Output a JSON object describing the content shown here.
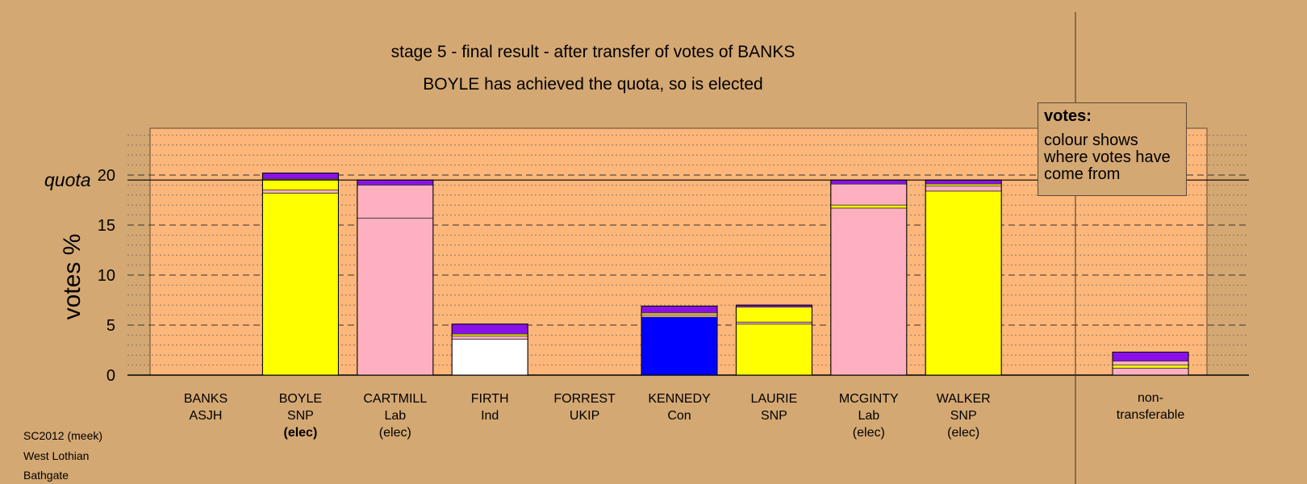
{
  "title_line1": "stage 5 - final result - after transfer of votes of BANKS",
  "title_line2": "BOYLE has achieved the quota, so is elected",
  "legend": {
    "title": "votes:",
    "text": "colour shows where votes have come from"
  },
  "footer": [
    "SC2012 (meek)",
    "West Lothian",
    "Bathgate"
  ],
  "colors": {
    "background": "#d4a873",
    "plot": "#fdb77a",
    "SNP": "#ffff00",
    "Lab": "#ffb0c0",
    "Ind": "#ffffff",
    "Con": "#0000ff",
    "other": "#8a10e8",
    "UKIP": "#8a10e8"
  },
  "chart_data": {
    "type": "bar",
    "stacked": true,
    "ylabel": "votes %",
    "quota_label": "quota",
    "quota": 19.5,
    "ylim": [
      0,
      24.5
    ],
    "yticks": [
      0,
      5,
      10,
      15,
      20
    ],
    "grid": "dashed major every 5, dotted minor every 1",
    "candidates": [
      {
        "name": "BANKS",
        "party": "ASJH",
        "status": "",
        "segments": []
      },
      {
        "name": "BOYLE",
        "party": "SNP",
        "status": "(elec)",
        "segments": [
          {
            "from": "SNP",
            "value": 18.2
          },
          {
            "from": "Lab",
            "value": 0.3
          },
          {
            "from": "SNP",
            "value": 1.1
          },
          {
            "from": "other",
            "value": 0.6
          }
        ]
      },
      {
        "name": "CARTMILL",
        "party": "Lab",
        "status": "(elec)",
        "segments": [
          {
            "from": "Lab",
            "value": 15.7
          },
          {
            "from": "Lab",
            "value": 3.3
          },
          {
            "from": "other",
            "value": 0.5
          }
        ]
      },
      {
        "name": "FIRTH",
        "party": "Ind",
        "status": "",
        "segments": [
          {
            "from": "Ind",
            "value": 3.6
          },
          {
            "from": "Lab",
            "value": 0.3
          },
          {
            "from": "SNP",
            "value": 0.2
          },
          {
            "from": "other",
            "value": 1.0
          }
        ]
      },
      {
        "name": "FORREST",
        "party": "UKIP",
        "status": "",
        "segments": []
      },
      {
        "name": "KENNEDY",
        "party": "Con",
        "status": "",
        "segments": [
          {
            "from": "Con",
            "value": 5.8
          },
          {
            "from": "Lab",
            "value": 0.2
          },
          {
            "from": "SNP",
            "value": 0.2
          },
          {
            "from": "other",
            "value": 0.7
          }
        ]
      },
      {
        "name": "LAURIE",
        "party": "SNP",
        "status": "",
        "segments": [
          {
            "from": "SNP",
            "value": 5.1
          },
          {
            "from": "Lab",
            "value": 0.2
          },
          {
            "from": "SNP",
            "value": 1.5
          },
          {
            "from": "other",
            "value": 0.2
          }
        ]
      },
      {
        "name": "MCGINTY",
        "party": "Lab",
        "status": "(elec)",
        "segments": [
          {
            "from": "Lab",
            "value": 16.7
          },
          {
            "from": "SNP",
            "value": 0.3
          },
          {
            "from": "Lab",
            "value": 2.1
          },
          {
            "from": "other",
            "value": 0.4
          }
        ]
      },
      {
        "name": "WALKER",
        "party": "SNP",
        "status": "(elec)",
        "segments": [
          {
            "from": "SNP",
            "value": 18.4
          },
          {
            "from": "Lab",
            "value": 0.5
          },
          {
            "from": "SNP",
            "value": 0.2
          },
          {
            "from": "other",
            "value": 0.4
          }
        ]
      }
    ],
    "non_transferable": {
      "label": [
        "non-",
        "transferable"
      ],
      "segments": [
        {
          "from": "Lab",
          "value": 0.7
        },
        {
          "from": "SNP",
          "value": 0.3
        },
        {
          "from": "Lab",
          "value": 0.4
        },
        {
          "from": "other",
          "value": 0.9
        }
      ]
    }
  }
}
